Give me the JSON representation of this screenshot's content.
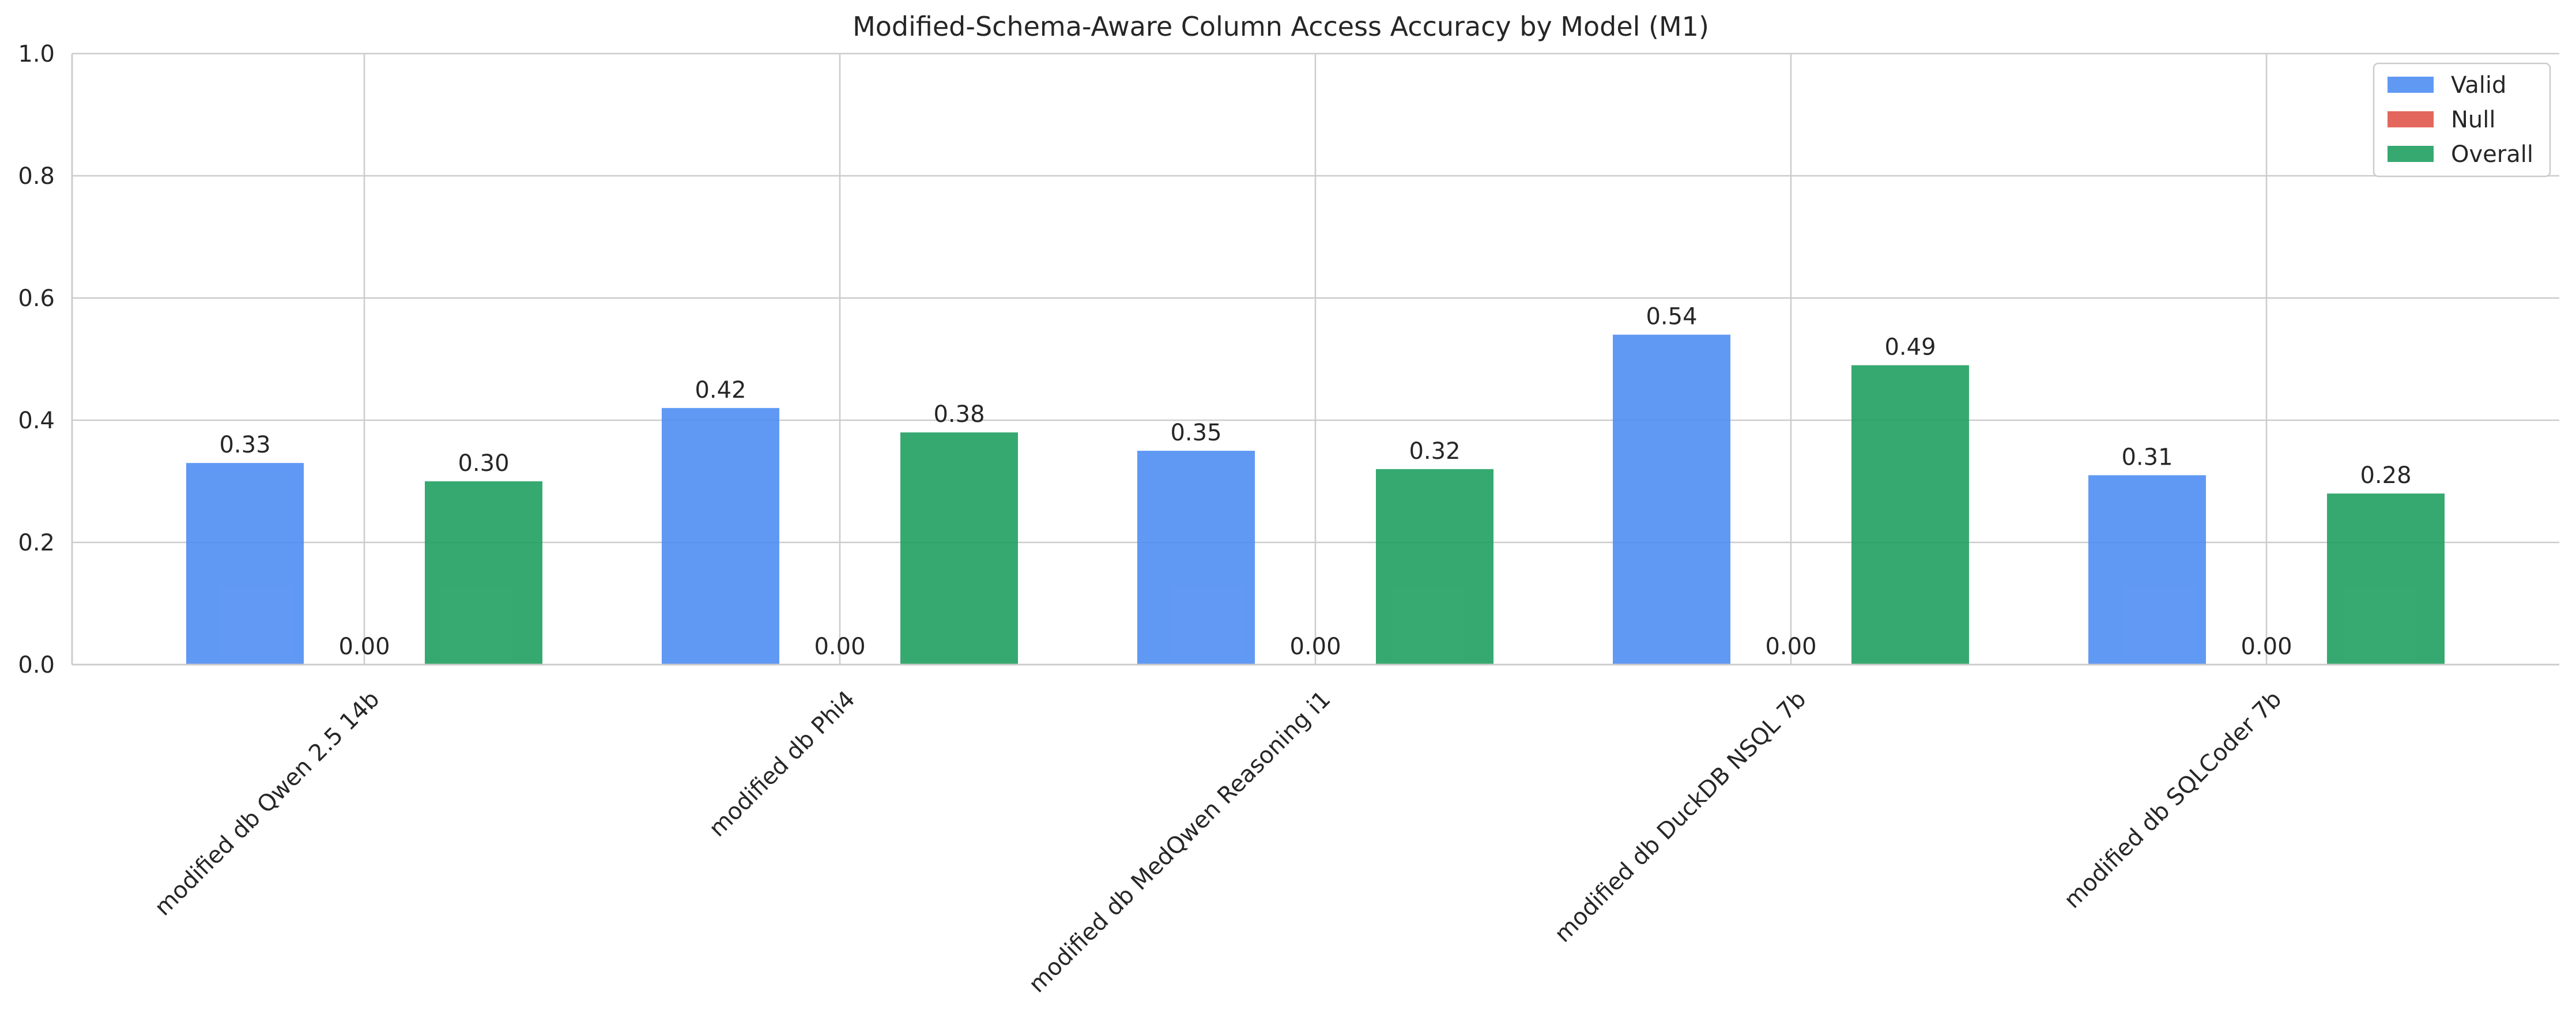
{
  "chart_data": {
    "type": "bar",
    "title": "Modified-Schema-Aware Column Access Accuracy by Model (M1)",
    "xlabel": "",
    "ylabel": "",
    "ylim": [
      0,
      1.0
    ],
    "yticks": [
      "0.0",
      "0.2",
      "0.4",
      "0.6",
      "0.8",
      "1.0"
    ],
    "grid": true,
    "legend_position": "top-right",
    "categories": [
      "modified db Qwen 2.5 14b",
      "modified db Phi4",
      "modified db MedQwen Reasoning i1",
      "modified db DuckDB NSQL 7b",
      "modified db SQLCoder 7b"
    ],
    "series": [
      {
        "name": "Valid",
        "color": "#4f8ef3",
        "values": [
          0.33,
          0.42,
          0.35,
          0.54,
          0.31
        ],
        "labels": [
          "0.33",
          "0.42",
          "0.35",
          "0.54",
          "0.31"
        ]
      },
      {
        "name": "Null",
        "color": "#e0564a",
        "values": [
          0.0,
          0.0,
          0.0,
          0.0,
          0.0
        ],
        "labels": [
          "0.00",
          "0.00",
          "0.00",
          "0.00",
          "0.00"
        ]
      },
      {
        "name": "Overall",
        "color": "#20a060",
        "values": [
          0.3,
          0.38,
          0.32,
          0.49,
          0.28
        ],
        "labels": [
          "0.30",
          "0.38",
          "0.32",
          "0.49",
          "0.28"
        ]
      }
    ]
  }
}
